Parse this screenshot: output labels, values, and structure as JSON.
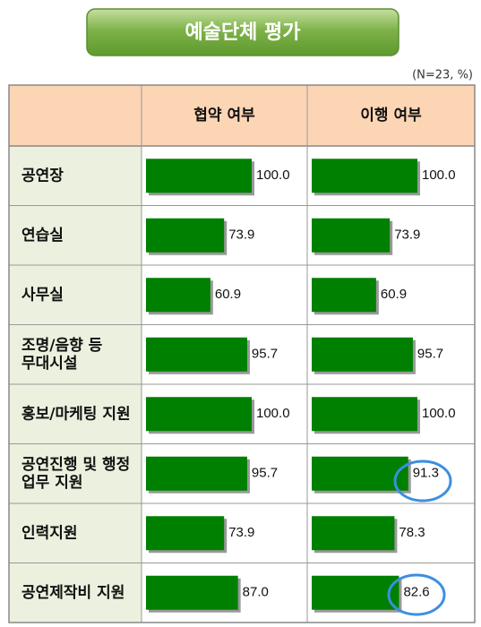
{
  "title": "예술단체 평가",
  "note": "(N=23, %)",
  "columns": [
    "협약 여부",
    "이행 여부"
  ],
  "xlim": [
    0,
    100
  ],
  "rows": [
    {
      "label": [
        "공연장"
      ],
      "values": [
        100,
        100
      ],
      "value_labels": [
        "100.0",
        "100.0"
      ]
    },
    {
      "label": [
        "연습실"
      ],
      "values": [
        73.9,
        73.9
      ],
      "value_labels": [
        "73.9",
        "73.9"
      ]
    },
    {
      "label": [
        "사무실"
      ],
      "values": [
        60.9,
        60.9
      ],
      "value_labels": [
        "60.9",
        "60.9"
      ]
    },
    {
      "label": [
        "조명/음향 등",
        "무대시설"
      ],
      "values": [
        95.7,
        95.7
      ],
      "value_labels": [
        "95.7",
        "95.7"
      ]
    },
    {
      "label": [
        "홍보/마케팅 지원"
      ],
      "values": [
        100,
        100
      ],
      "value_labels": [
        "100.0",
        "100.0"
      ]
    },
    {
      "label": [
        "공연진행 및 행정",
        "업무 지원"
      ],
      "values": [
        95.7,
        91.3
      ],
      "value_labels": [
        "95.7",
        "91.3"
      ]
    },
    {
      "label": [
        "인력지원"
      ],
      "values": [
        73.9,
        78.3
      ],
      "value_labels": [
        "73.9",
        "78.3"
      ]
    },
    {
      "label": [
        "공연제작비 지원"
      ],
      "values": [
        87,
        82.6
      ],
      "value_labels": [
        "87.0",
        "82.6"
      ]
    }
  ]
}
